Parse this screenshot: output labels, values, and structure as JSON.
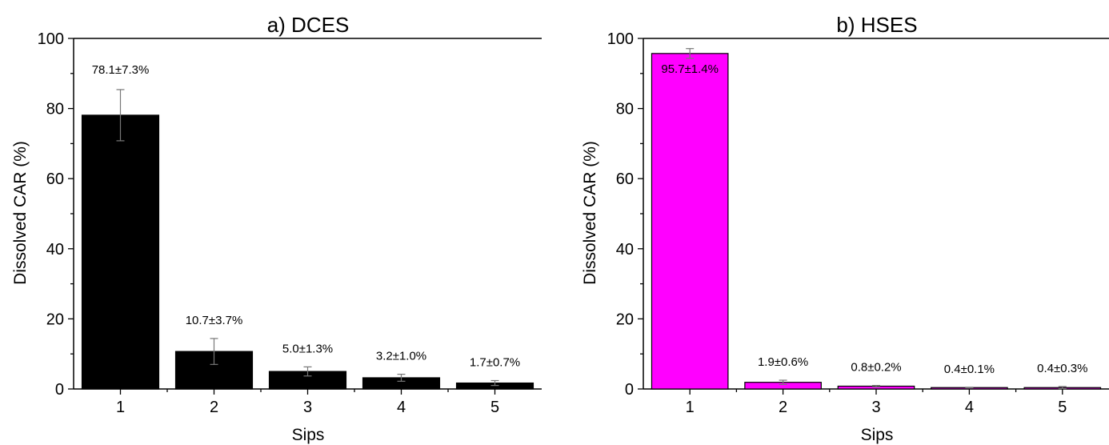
{
  "chart_data": [
    {
      "type": "bar",
      "title": "a) DCES",
      "xlabel": "Sips",
      "ylabel": "Dissolved CAR (%)",
      "categories": [
        "1",
        "2",
        "3",
        "4",
        "5"
      ],
      "values": [
        78.1,
        10.7,
        5.0,
        3.2,
        1.7
      ],
      "errors": [
        7.3,
        3.7,
        1.3,
        1.0,
        0.7
      ],
      "data_labels": [
        "78.1±7.3%",
        "10.7±3.7%",
        "5.0±1.3%",
        "3.2±1.0%",
        "1.7±0.7%"
      ],
      "ylim": [
        0,
        100
      ],
      "yticks": [
        "0",
        "20",
        "40",
        "60",
        "80",
        "100"
      ],
      "bar_color": "#000000",
      "grid": false
    },
    {
      "type": "bar",
      "title": "b) HSES",
      "xlabel": "Sips",
      "ylabel": "Dissolved CAR (%)",
      "categories": [
        "1",
        "2",
        "3",
        "4",
        "5"
      ],
      "values": [
        95.7,
        1.9,
        0.8,
        0.4,
        0.4
      ],
      "errors": [
        1.4,
        0.6,
        0.2,
        0.1,
        0.3
      ],
      "data_labels": [
        "95.7±1.4%",
        "1.9±0.6%",
        "0.8±0.2%",
        "0.4±0.1%",
        "0.4±0.3%"
      ],
      "ylim": [
        0,
        100
      ],
      "yticks": [
        "0",
        "20",
        "40",
        "60",
        "80",
        "100"
      ],
      "bar_color": "#ff00ff",
      "grid": false
    }
  ]
}
